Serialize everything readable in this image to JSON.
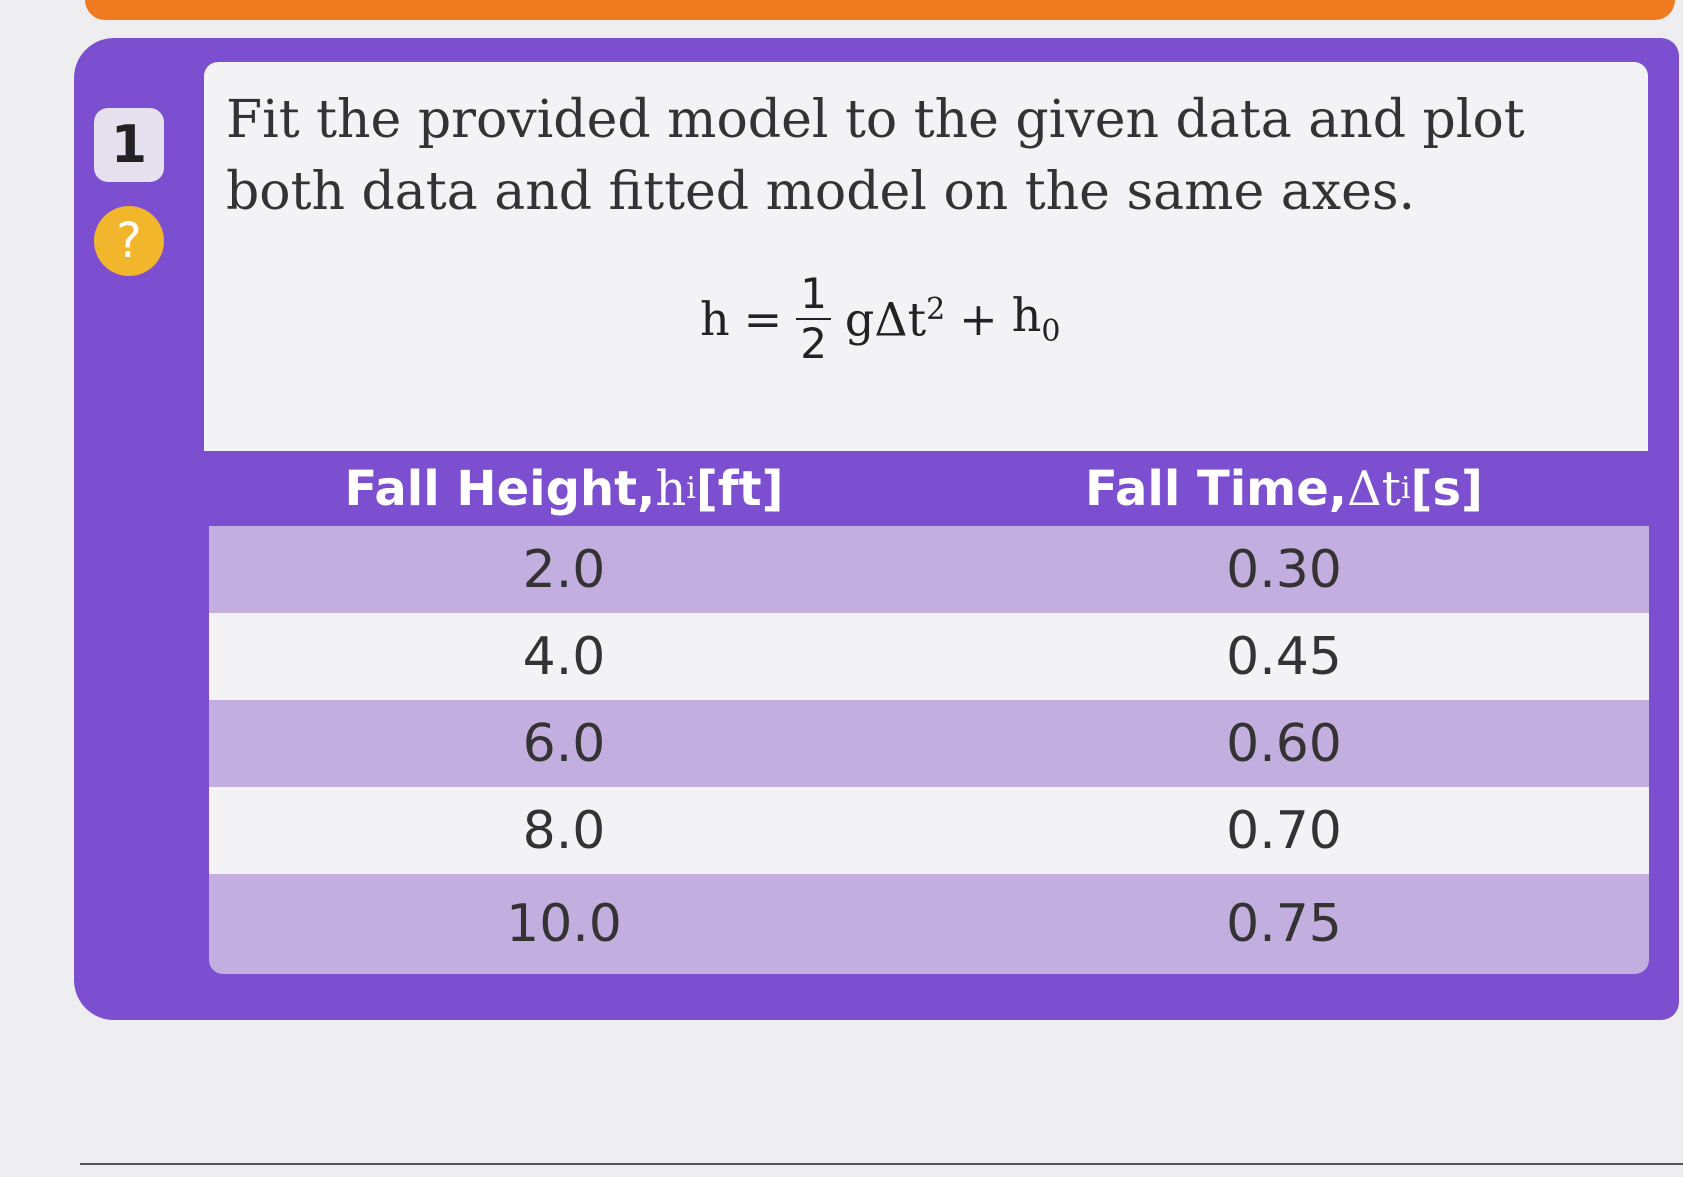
{
  "question": {
    "number": "1",
    "help_icon": "?",
    "prompt": "Fit the provided model to the given data and plot both data and fitted model on the same axes.",
    "equation": {
      "lhs": "h",
      "equals": "=",
      "numerator": "1",
      "denominator": "2",
      "term": "gΔt",
      "exponent": "2",
      "plus": "+",
      "h0_base": "h",
      "h0_sub": "0"
    }
  },
  "table": {
    "headers": [
      {
        "text": "Fall Height, ",
        "var": "h",
        "sub": "i",
        "unit": " [ft]"
      },
      {
        "text": "Fall Time, ",
        "var": "Δt",
        "sub": "i",
        "unit": " [s]"
      }
    ],
    "rows": [
      [
        "2.0",
        "0.30"
      ],
      [
        "4.0",
        "0.45"
      ],
      [
        "6.0",
        "0.60"
      ],
      [
        "8.0",
        "0.70"
      ],
      [
        "10.0",
        "0.75"
      ]
    ]
  }
}
